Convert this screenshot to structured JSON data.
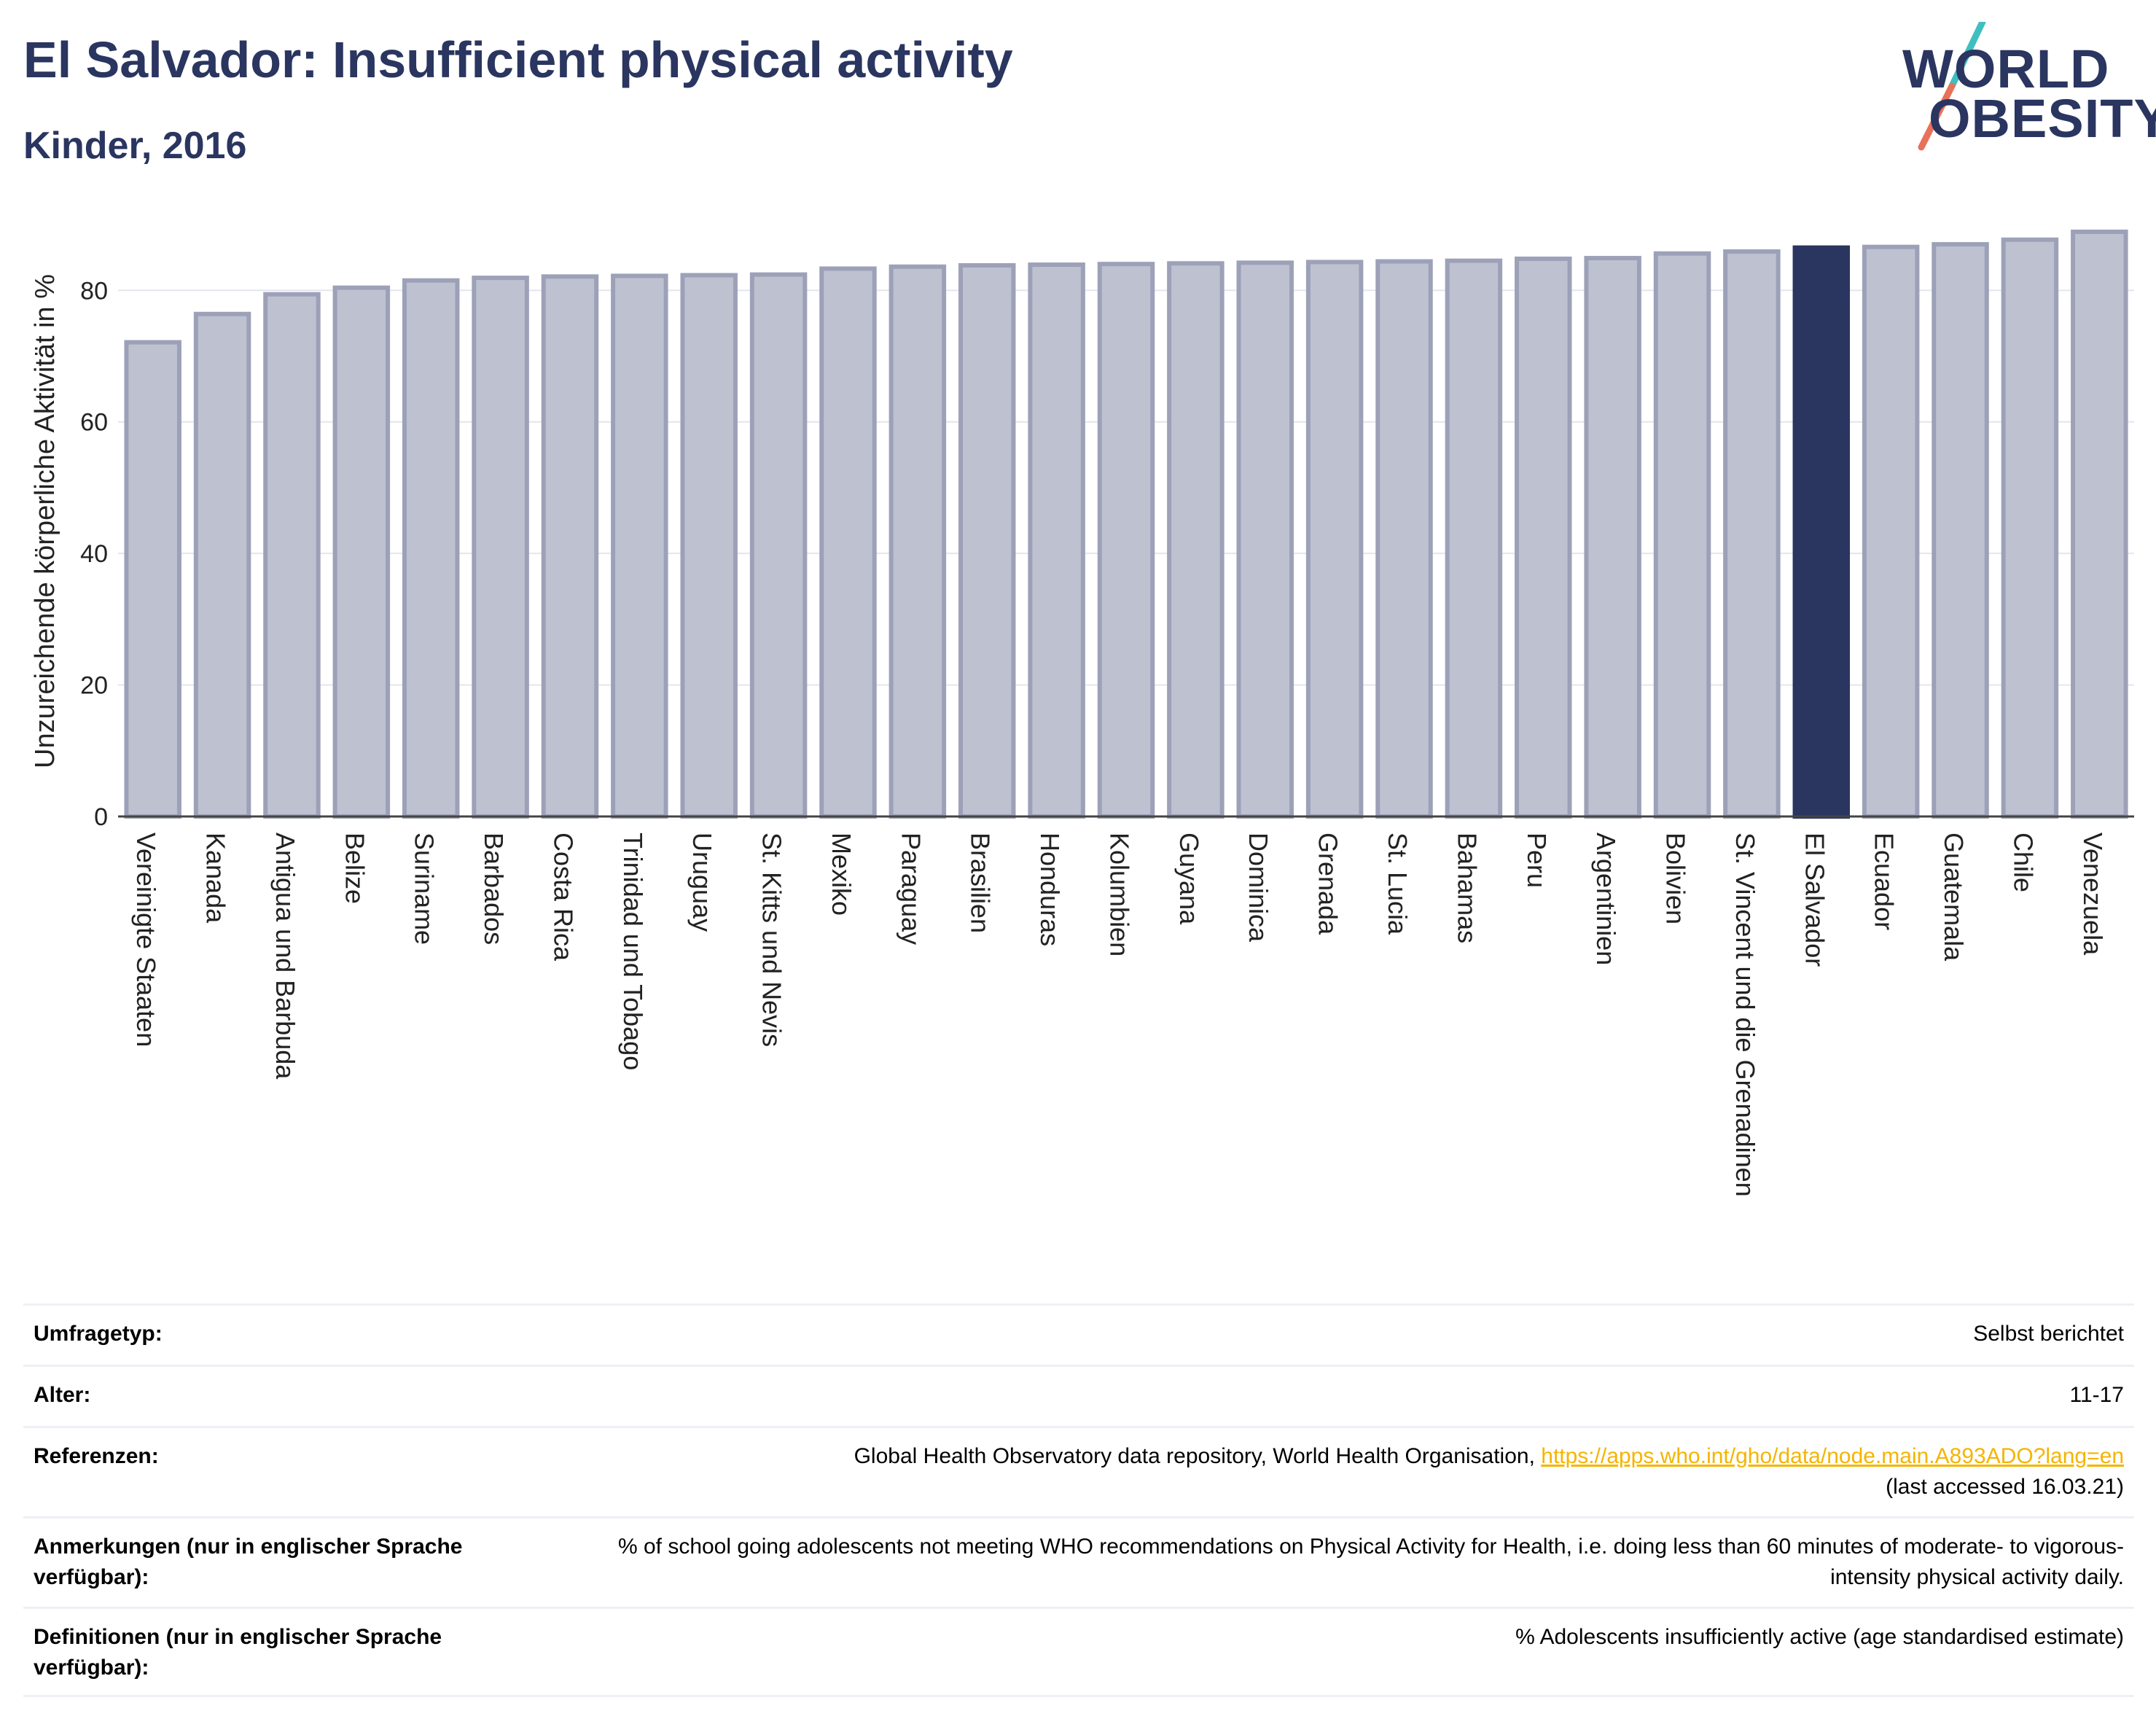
{
  "header": {
    "title": "El Salvador: Insufficient physical activity",
    "subtitle": "Kinder, 2016"
  },
  "logo": {
    "line1": "WORLD",
    "line2": "OBESITY",
    "slash_colors": [
      "#3fbfbf",
      "#e8715a"
    ]
  },
  "colors": {
    "bar_default": "#bec1d0",
    "bar_default_stroke": "#9da1b8",
    "bar_highlight": "#2a3560",
    "grid": "#e4e6ee",
    "link": "#f5b400"
  },
  "chart_data": {
    "type": "bar",
    "title": "",
    "xlabel": "",
    "ylabel": "Unzureichende körperliche Aktivität in %",
    "ylim": [
      0,
      92
    ],
    "yticks": [
      0,
      20,
      40,
      60,
      80
    ],
    "grid": true,
    "highlight": "El Salvador",
    "categories": [
      "Vereinigte Staaten",
      "Kanada",
      "Antigua und Barbuda",
      "Belize",
      "Suriname",
      "Barbados",
      "Costa Rica",
      "Trinidad und Tobago",
      "Uruguay",
      "St. Kitts und Nevis",
      "Mexiko",
      "Paraguay",
      "Brasilien",
      "Honduras",
      "Kolumbien",
      "Guyana",
      "Dominica",
      "Grenada",
      "St. Lucia",
      "Bahamas",
      "Peru",
      "Argentinien",
      "Bolivien",
      "St. Vincent und die Grenadinen",
      "El Salvador",
      "Ecuador",
      "Guatemala",
      "Chile",
      "Venezuela"
    ],
    "values": [
      72.1,
      76.4,
      79.4,
      80.4,
      81.5,
      81.9,
      82.1,
      82.2,
      82.3,
      82.4,
      83.3,
      83.6,
      83.8,
      83.9,
      84.0,
      84.1,
      84.2,
      84.3,
      84.4,
      84.5,
      84.8,
      84.9,
      85.6,
      85.9,
      86.5,
      86.6,
      87.0,
      87.7,
      88.9
    ]
  },
  "meta": {
    "survey_label": "Umfragetyp:",
    "survey_value": "Selbst berichtet",
    "age_label": "Alter:",
    "age_value": "11-17",
    "ref_label": "Referenzen:",
    "ref_text": "Global Health Observatory data repository, World Health Organisation, ",
    "ref_link": "https://apps.who.int/gho/data/node.main.A893ADO?lang=en",
    "ref_accessed": "(last accessed 16.03.21)",
    "notes_label": "Anmerkungen (nur in englischer Sprache verfügbar):",
    "notes_value": "% of school going adolescents not meeting WHO recommendations on Physical Activity for Health, i.e. doing less than 60 minutes of moderate- to vigorous-intensity physical activity daily.",
    "defs_label": "Definitionen (nur in englischer Sprache verfügbar):",
    "defs_value": "% Adolescents insufficiently active (age standardised estimate)"
  }
}
